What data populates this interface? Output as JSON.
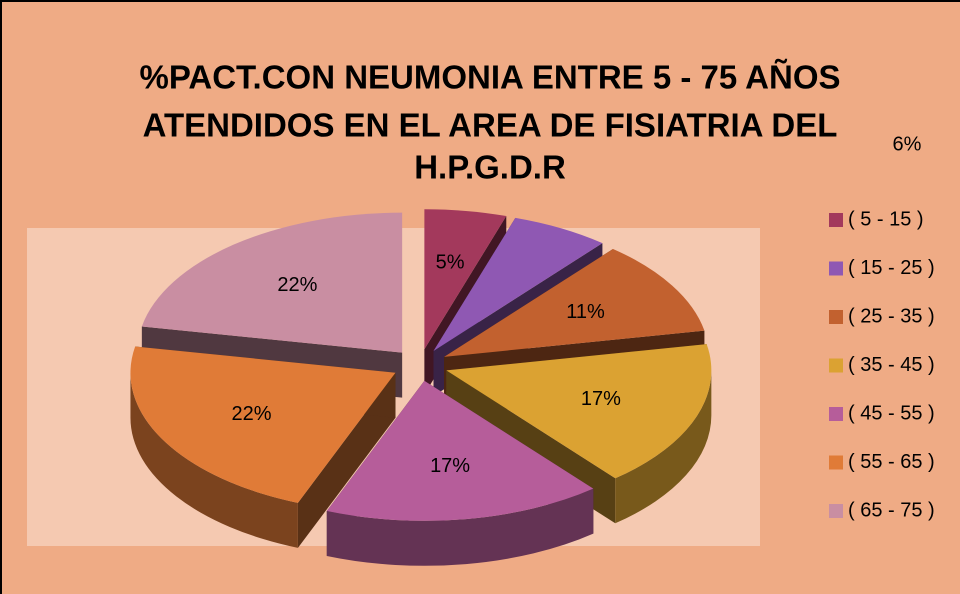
{
  "chart_data": {
    "type": "pie",
    "title": [
      "%PACT.CON NEUMONIA ENTRE 5 - 75 AÑOS",
      "ATENDIDOS EN EL AREA DE FISIATRIA DEL",
      "H.P.G.D.R"
    ],
    "categories": [
      "( 5 - 15 )",
      "( 15 - 25 )",
      "( 25 - 35 )",
      "( 35 - 45 )",
      "( 45 - 55 )",
      "( 55 - 65 )",
      "( 65 - 75 )"
    ],
    "values": [
      5,
      6,
      11,
      17,
      17,
      22,
      22
    ],
    "value_labels": [
      "5%",
      "6%",
      "11%",
      "17%",
      "17%",
      "22%",
      "22%"
    ],
    "colors": [
      "#a3395c",
      "#8f58b3",
      "#c2612f",
      "#dba232",
      "#b65d9a",
      "#e07b37",
      "#c98ea2"
    ],
    "legend": "right"
  }
}
